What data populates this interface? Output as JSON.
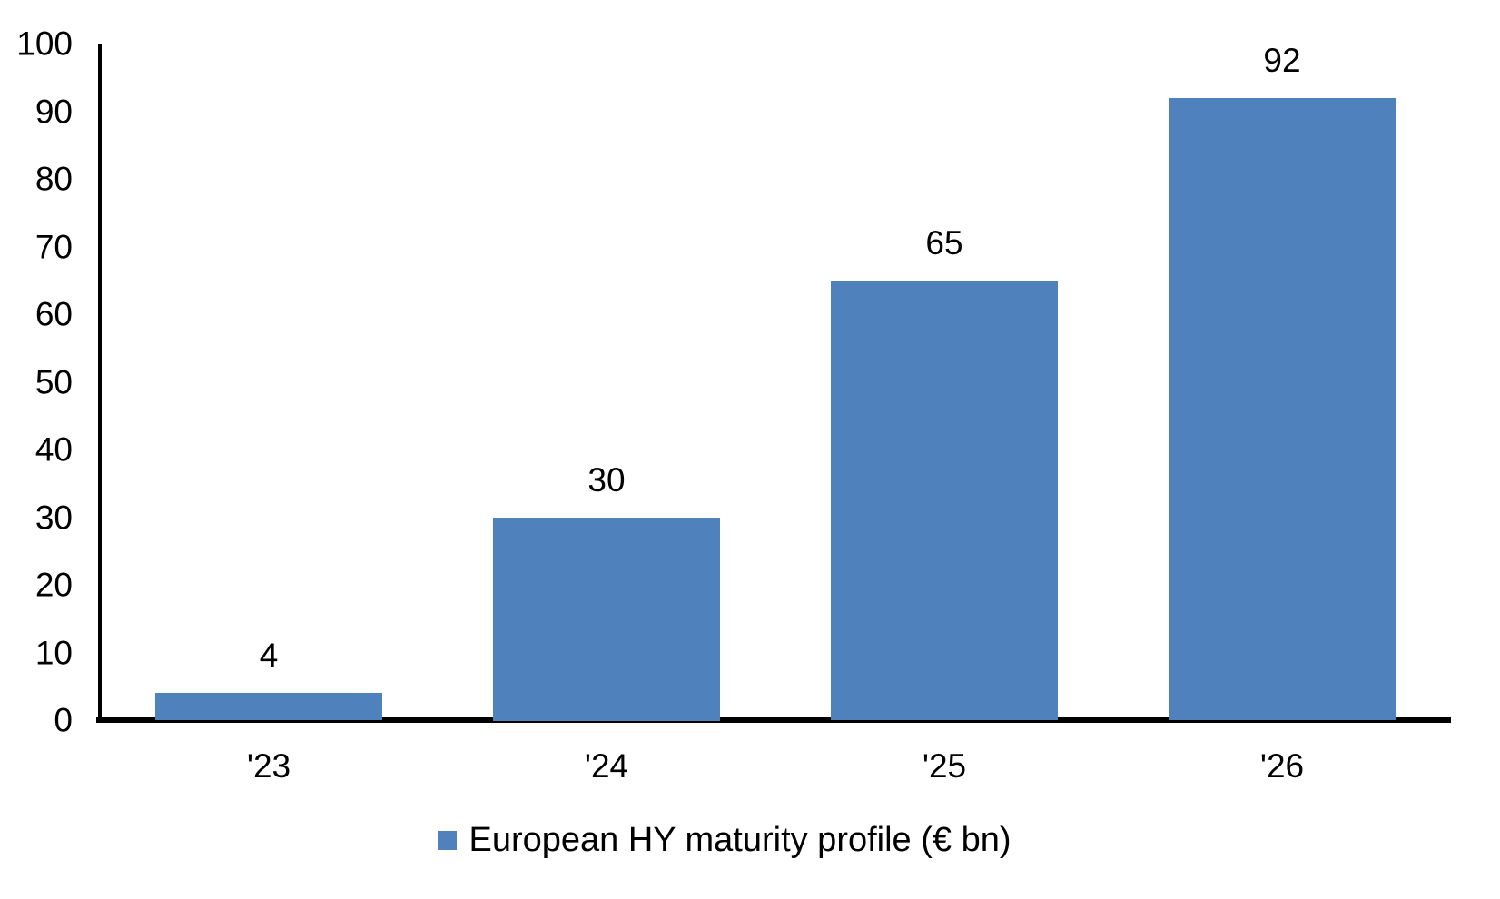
{
  "chart_data": {
    "type": "bar",
    "categories": [
      "'23",
      "'24",
      "'25",
      "'26"
    ],
    "values": [
      4,
      30,
      65,
      92
    ],
    "data_labels": [
      "4",
      "30",
      "65",
      "92"
    ],
    "legend": [
      "European HY maturity profile (€ bn)"
    ],
    "legend_position": "bottom-center",
    "title": "",
    "xlabel": "",
    "ylabel": "",
    "ylim": [
      0,
      100
    ],
    "yticks": [
      0,
      10,
      20,
      30,
      40,
      50,
      60,
      70,
      80,
      90,
      100
    ],
    "grid": false,
    "bar_color": "#4F81BD",
    "axis_color": "#000000",
    "text_color": "#000000",
    "background": "#FFFFFF"
  }
}
